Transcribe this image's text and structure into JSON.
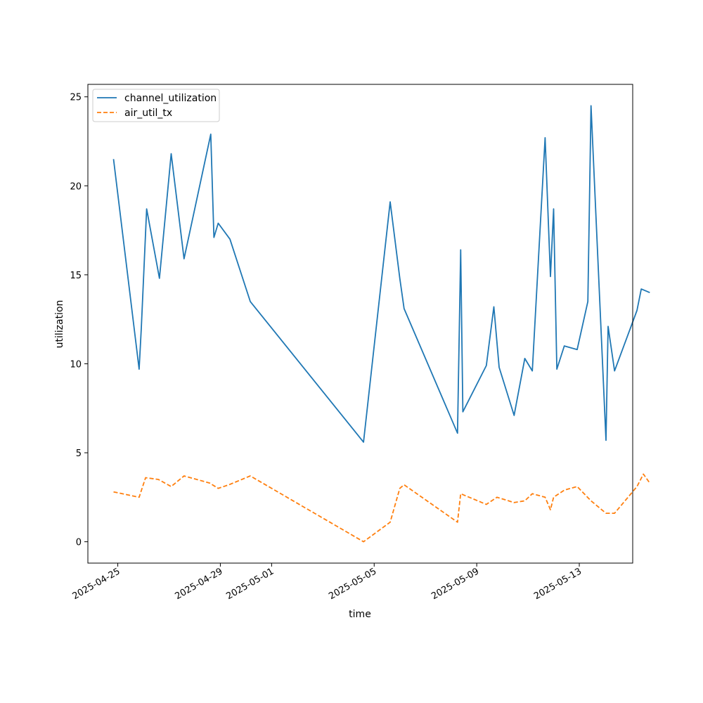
{
  "chart_data": {
    "type": "line",
    "title": "",
    "xlabel": "time",
    "ylabel": "utilization",
    "x_ticks": [
      "2025-04-25",
      "2025-04-29",
      "2025-05-01",
      "2025-05-05",
      "2025-05-09",
      "2025-05-13"
    ],
    "y_ticks": [
      0,
      5,
      10,
      15,
      20,
      25
    ],
    "xlim": [
      "2025-04-23T20:00",
      "2025-05-15T02:00"
    ],
    "ylim": [
      -1.2,
      25.7
    ],
    "grid": false,
    "legend_position": "top-left",
    "series": [
      {
        "name": "channel_utilization",
        "color": "#1f77b4",
        "dash": "solid",
        "points": [
          [
            "2025-04-24T20:00",
            21.5
          ],
          [
            "2025-04-25T20:00",
            9.7
          ],
          [
            "2025-04-25T22:00",
            12.0
          ],
          [
            "2025-04-26T03:00",
            18.7
          ],
          [
            "2025-04-26T15:00",
            14.8
          ],
          [
            "2025-04-27T02:00",
            21.8
          ],
          [
            "2025-04-27T14:00",
            15.9
          ],
          [
            "2025-04-28T15:00",
            22.9
          ],
          [
            "2025-04-28T18:00",
            17.1
          ],
          [
            "2025-04-28T22:00",
            17.9
          ],
          [
            "2025-04-29T09:00",
            17.0
          ],
          [
            "2025-04-30T04:00",
            13.5
          ],
          [
            "2025-05-04T14:00",
            5.6
          ],
          [
            "2025-05-05T15:00",
            19.1
          ],
          [
            "2025-05-06T00:00",
            14.8
          ],
          [
            "2025-05-06T04:00",
            13.1
          ],
          [
            "2025-05-08T06:00",
            6.1
          ],
          [
            "2025-05-08T09:00",
            16.4
          ],
          [
            "2025-05-08T11:00",
            7.3
          ],
          [
            "2025-05-09T09:00",
            9.9
          ],
          [
            "2025-05-09T16:00",
            13.2
          ],
          [
            "2025-05-09T21:00",
            9.8
          ],
          [
            "2025-05-10T11:00",
            7.1
          ],
          [
            "2025-05-10T21:00",
            10.3
          ],
          [
            "2025-05-11T04:00",
            9.6
          ],
          [
            "2025-05-11T16:00",
            22.7
          ],
          [
            "2025-05-11T21:00",
            14.9
          ],
          [
            "2025-05-12T00:00",
            18.7
          ],
          [
            "2025-05-12T03:00",
            9.7
          ],
          [
            "2025-05-12T10:00",
            11.0
          ],
          [
            "2025-05-12T22:00",
            10.8
          ],
          [
            "2025-05-13T08:00",
            13.5
          ],
          [
            "2025-05-13T11:00",
            24.5
          ],
          [
            "2025-05-14T01:00",
            5.7
          ],
          [
            "2025-05-14T03:00",
            12.1
          ],
          [
            "2025-05-14T09:00",
            9.6
          ],
          [
            "2025-05-15T06:00",
            13.0
          ],
          [
            "2025-05-15T10:00",
            14.2
          ],
          [
            "2025-05-15T18:00",
            14.0
          ]
        ]
      },
      {
        "name": "air_util_tx",
        "color": "#ff7f0e",
        "dash": "dashed",
        "points": [
          [
            "2025-04-24T20:00",
            2.8
          ],
          [
            "2025-04-25T20:00",
            2.5
          ],
          [
            "2025-04-26T02:00",
            3.6
          ],
          [
            "2025-04-26T14:00",
            3.5
          ],
          [
            "2025-04-27T02:00",
            3.1
          ],
          [
            "2025-04-27T14:00",
            3.7
          ],
          [
            "2025-04-28T14:00",
            3.3
          ],
          [
            "2025-04-28T22:00",
            3.0
          ],
          [
            "2025-04-29T08:00",
            3.2
          ],
          [
            "2025-04-30T04:00",
            3.7
          ],
          [
            "2025-05-04T14:00",
            0.0
          ],
          [
            "2025-05-05T15:00",
            1.1
          ],
          [
            "2025-05-06T00:00",
            3.0
          ],
          [
            "2025-05-06T04:00",
            3.2
          ],
          [
            "2025-05-08T06:00",
            1.1
          ],
          [
            "2025-05-08T09:00",
            2.7
          ],
          [
            "2025-05-09T09:00",
            2.1
          ],
          [
            "2025-05-09T19:00",
            2.5
          ],
          [
            "2025-05-10T11:00",
            2.2
          ],
          [
            "2025-05-10T21:00",
            2.3
          ],
          [
            "2025-05-11T04:00",
            2.7
          ],
          [
            "2025-05-11T16:00",
            2.5
          ],
          [
            "2025-05-11T21:00",
            1.8
          ],
          [
            "2025-05-12T00:00",
            2.5
          ],
          [
            "2025-05-12T10:00",
            2.9
          ],
          [
            "2025-05-12T22:00",
            3.1
          ],
          [
            "2025-05-13T11:00",
            2.3
          ],
          [
            "2025-05-14T01:00",
            1.6
          ],
          [
            "2025-05-14T09:00",
            1.6
          ],
          [
            "2025-05-15T06:00",
            3.1
          ],
          [
            "2025-05-15T12:00",
            3.8
          ],
          [
            "2025-05-15T18:00",
            3.3
          ]
        ]
      }
    ]
  }
}
